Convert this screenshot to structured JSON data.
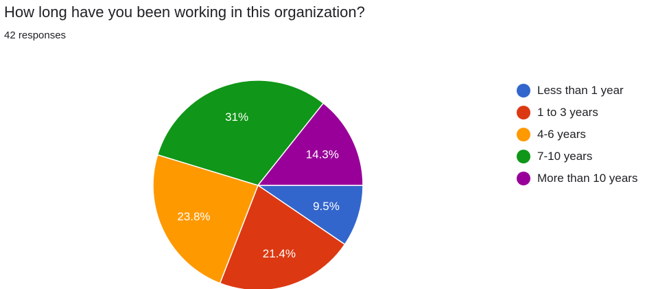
{
  "header": {
    "title": "How long have you been working in this organization?",
    "responses": "42 responses"
  },
  "chart_data": {
    "type": "pie",
    "start_angle_deg": 90,
    "direction": "clockwise",
    "slices": [
      {
        "label": "Less than 1 year",
        "value": 9.5,
        "display": "9.5%",
        "color": "#3366cc"
      },
      {
        "label": "1 to 3 years",
        "value": 21.4,
        "display": "21.4%",
        "color": "#dc3912"
      },
      {
        "label": "4-6 years",
        "value": 23.8,
        "display": "23.8%",
        "color": "#ff9900"
      },
      {
        "label": "7-10 years",
        "value": 31.0,
        "display": "31%",
        "color": "#109618"
      },
      {
        "label": "More than 10 years",
        "value": 14.3,
        "display": "14.3%",
        "color": "#990099"
      }
    ],
    "legend_position": "right"
  }
}
